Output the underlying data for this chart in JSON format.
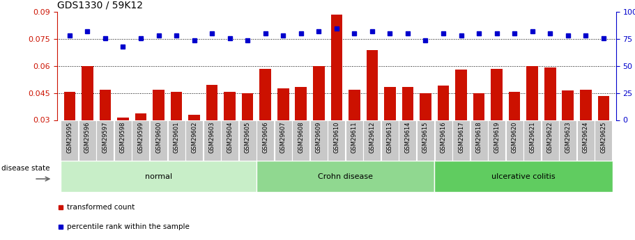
{
  "title": "GDS1330 / 59K12",
  "samples": [
    "GSM29595",
    "GSM29596",
    "GSM29597",
    "GSM29598",
    "GSM29599",
    "GSM29600",
    "GSM29601",
    "GSM29602",
    "GSM29603",
    "GSM29604",
    "GSM29605",
    "GSM29606",
    "GSM29607",
    "GSM29608",
    "GSM29609",
    "GSM29610",
    "GSM29611",
    "GSM29612",
    "GSM29613",
    "GSM29614",
    "GSM29615",
    "GSM29616",
    "GSM29617",
    "GSM29618",
    "GSM29619",
    "GSM29620",
    "GSM29621",
    "GSM29622",
    "GSM29623",
    "GSM29624",
    "GSM29625"
  ],
  "bar_values": [
    0.0455,
    0.06,
    0.047,
    0.0315,
    0.0335,
    0.047,
    0.0455,
    0.033,
    0.0495,
    0.0455,
    0.045,
    0.0585,
    0.0475,
    0.0485,
    0.06,
    0.0885,
    0.047,
    0.069,
    0.0485,
    0.0485,
    0.045,
    0.049,
    0.058,
    0.045,
    0.0585,
    0.0455,
    0.06,
    0.059,
    0.0465,
    0.047,
    0.0435
  ],
  "dot_values": [
    78,
    82,
    76,
    68,
    76,
    78,
    78,
    74,
    80,
    76,
    74,
    80,
    78,
    80,
    82,
    85,
    80,
    82,
    80,
    80,
    74,
    80,
    78,
    80,
    80,
    80,
    82,
    80,
    78,
    78,
    76
  ],
  "groups": [
    {
      "label": "normal",
      "start": 0,
      "end": 10,
      "color": "#c8eec8"
    },
    {
      "label": "Crohn disease",
      "start": 11,
      "end": 20,
      "color": "#90d890"
    },
    {
      "label": "ulcerative colitis",
      "start": 21,
      "end": 30,
      "color": "#60cc60"
    }
  ],
  "bar_color": "#cc1100",
  "dot_color": "#0000cc",
  "ylim_left": [
    0.03,
    0.09
  ],
  "ylim_right": [
    0,
    100
  ],
  "yticks_left": [
    0.03,
    0.045,
    0.06,
    0.075,
    0.09
  ],
  "yticks_right": [
    0,
    25,
    50,
    75,
    100
  ],
  "grid_values": [
    0.045,
    0.06,
    0.075
  ],
  "title_fontsize": 10,
  "axis_color_left": "#cc1100",
  "axis_color_right": "#0000cc",
  "disease_state_label": "disease state",
  "tick_box_color": "#c8c8c8",
  "legend_items": [
    {
      "label": "transformed count",
      "color": "#cc1100"
    },
    {
      "label": "percentile rank within the sample",
      "color": "#0000cc"
    }
  ]
}
